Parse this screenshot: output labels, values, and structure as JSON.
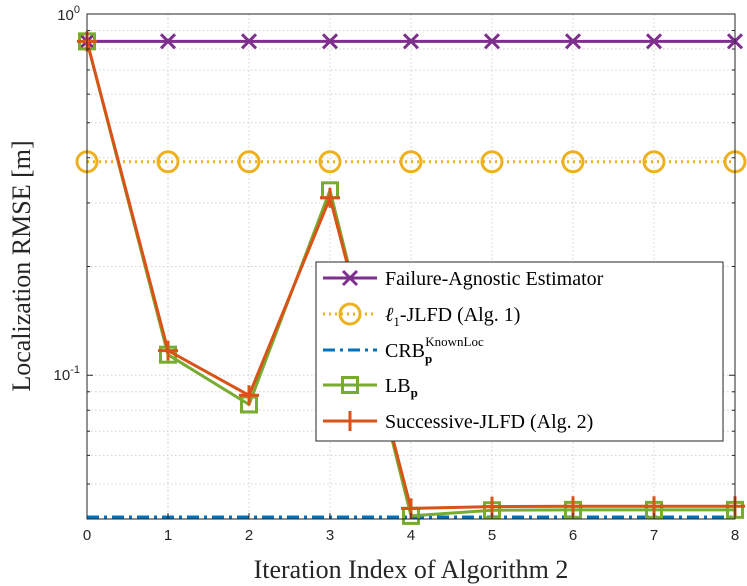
{
  "chart_data": {
    "type": "line",
    "title": "",
    "xlabel": "Iteration Index of Algorithm 2",
    "ylabel": "Localization RMSE [m]",
    "x": [
      0,
      1,
      2,
      3,
      4,
      5,
      6,
      7,
      8
    ],
    "xlim": [
      0,
      8
    ],
    "ylim": [
      0.04,
      1
    ],
    "yscale": "log",
    "grid": true,
    "legend_position": "center-right",
    "x_tick_labels": [
      "0",
      "1",
      "2",
      "3",
      "4",
      "5",
      "6",
      "7",
      "8"
    ],
    "y_tick_labels": {
      "top": {
        "base": "10",
        "exp": "0"
      },
      "mid": {
        "base": "10",
        "exp": "-1"
      }
    },
    "series": [
      {
        "name": "Failure-Agnostic Estimator",
        "legend": {
          "main": "Failure-Agnostic Estimator"
        },
        "color": "#7E2F8E",
        "marker": "x",
        "dash": "solid",
        "values": [
          0.84,
          0.84,
          0.84,
          0.84,
          0.84,
          0.84,
          0.84,
          0.84,
          0.84
        ]
      },
      {
        "name": "ℓ1-JLFD (Alg. 1)",
        "legend": {
          "prefix": "ℓ",
          "sub": "1",
          "main": "-JLFD (Alg. 1)"
        },
        "color": "#EDB120",
        "marker": "o",
        "dash": "dotted",
        "values": [
          0.39,
          0.39,
          0.39,
          0.39,
          0.39,
          0.39,
          0.39,
          0.39,
          0.39
        ]
      },
      {
        "name": "CRB_p^KnownLoc",
        "legend": {
          "main": "CRB",
          "sub": "p",
          "sup": "KnownLoc"
        },
        "color": "#0072BD",
        "marker": "none",
        "dash": "dashdot",
        "values": [
          0.0405,
          0.0405,
          0.0405,
          0.0405,
          0.0405,
          0.0405,
          0.0405,
          0.0405,
          0.0405
        ]
      },
      {
        "name": "LB_p",
        "legend": {
          "main": "LB",
          "sub": "p"
        },
        "color": "#77AC30",
        "marker": "s",
        "dash": "solid",
        "values": [
          0.84,
          0.114,
          0.083,
          0.325,
          0.0408,
          0.0423,
          0.0424,
          0.0424,
          0.0424
        ]
      },
      {
        "name": "Successive-JLFD (Alg. 2)",
        "legend": {
          "main": "Successive-JLFD (Alg. 2)"
        },
        "color": "#D95319",
        "marker": "+",
        "dash": "solid",
        "values": [
          0.84,
          0.117,
          0.088,
          0.31,
          0.0428,
          0.0433,
          0.0434,
          0.0434,
          0.0434
        ]
      }
    ]
  }
}
